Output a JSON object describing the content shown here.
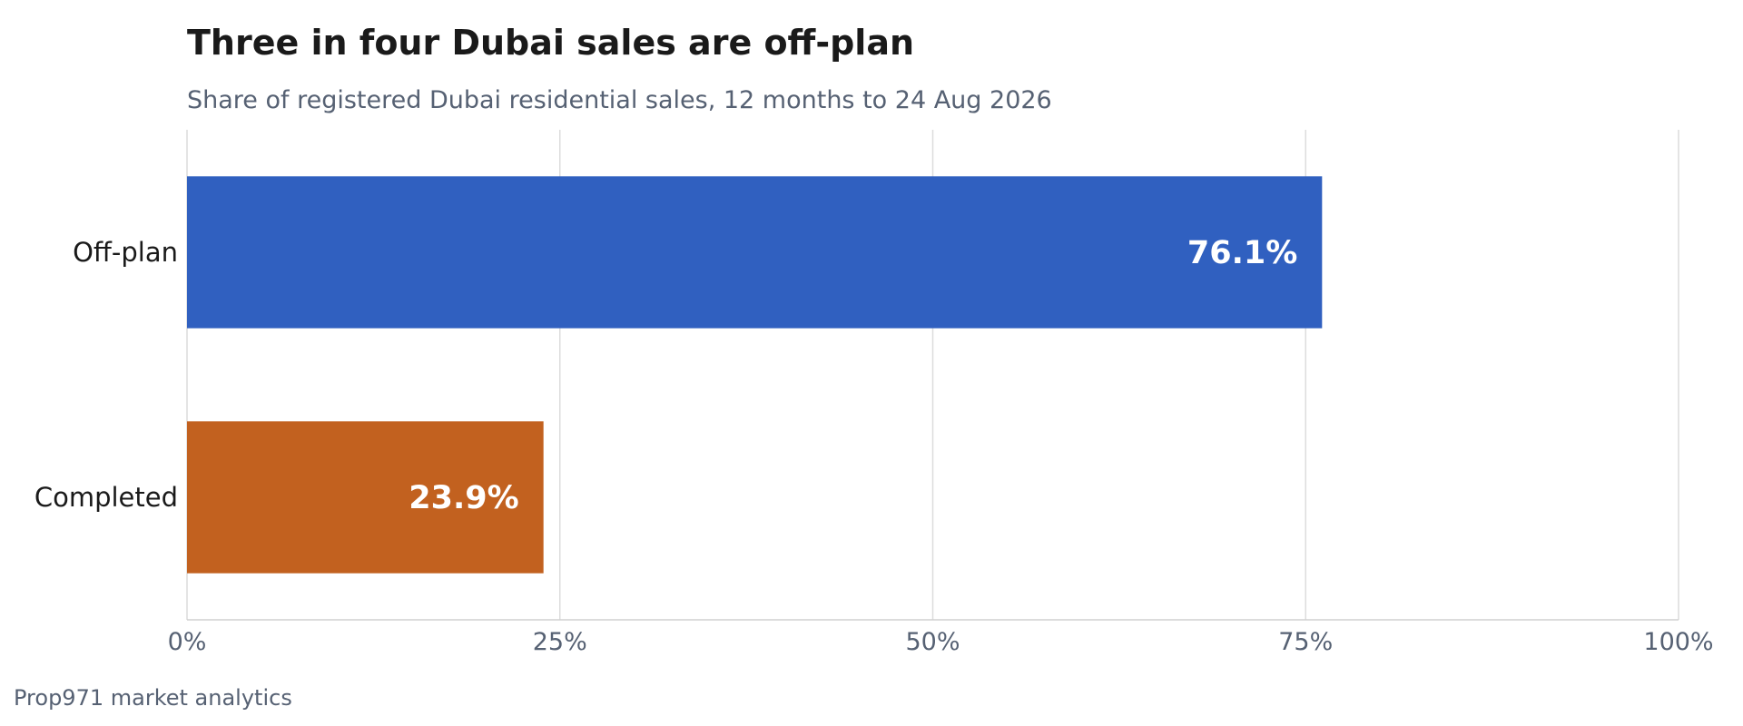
{
  "chart_data": {
    "type": "bar",
    "orientation": "horizontal",
    "title": "Three in four Dubai sales are off-plan",
    "subtitle": "Share of registered Dubai residential sales, 12 months to 24 Aug 2026",
    "categories": [
      "Off-plan",
      "Completed"
    ],
    "values": [
      76.1,
      23.9
    ],
    "value_labels": [
      "76.1%",
      "23.9%"
    ],
    "colors": [
      "#3060c0",
      "#c2611f"
    ],
    "xlim": [
      0,
      100
    ],
    "xticks": [
      0,
      25,
      50,
      75,
      100
    ],
    "xtick_labels": [
      "0%",
      "25%",
      "50%",
      "75%",
      "100%"
    ],
    "grid": true,
    "legend": "none",
    "source": "Prop971 market analytics"
  }
}
